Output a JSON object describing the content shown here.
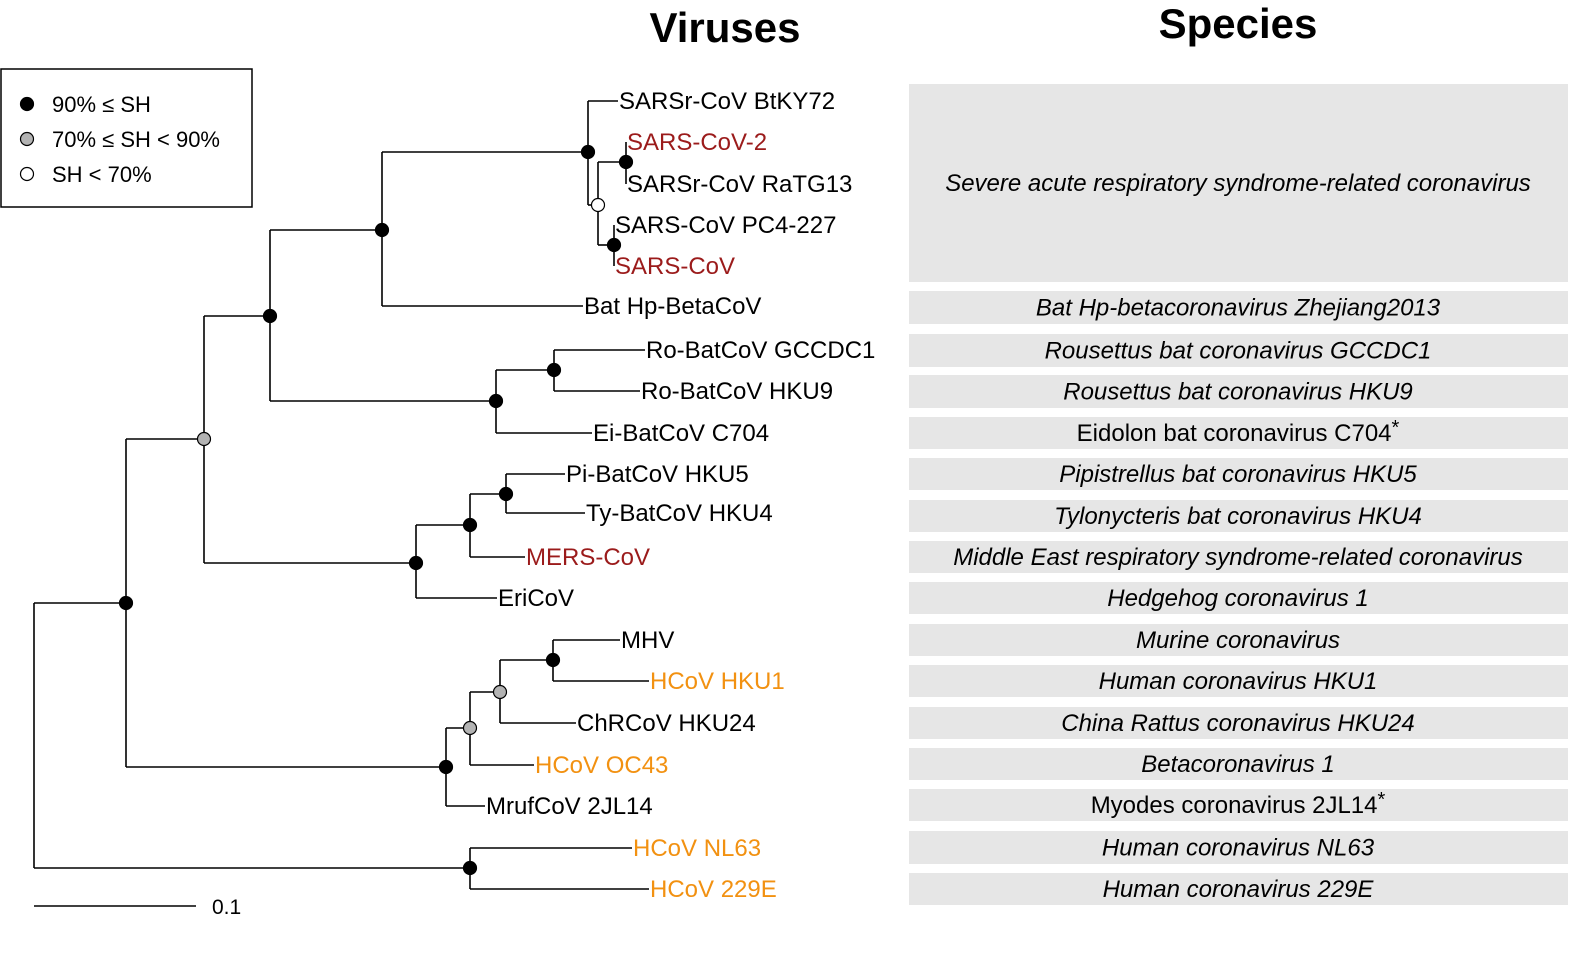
{
  "headers": {
    "viruses": "Viruses",
    "species": "Species"
  },
  "colors": {
    "red": "#9B1B1B",
    "orange": "#F29111",
    "black": "#000000",
    "band": "#E6E6E6",
    "node_gray": "#B3B3B3"
  },
  "legend": [
    {
      "symbol": "filled-black-circle",
      "label": "90% ≤ SH"
    },
    {
      "symbol": "filled-gray-circle",
      "label": "70% ≤ SH < 90%"
    },
    {
      "symbol": "open-circle",
      "label": "SH < 70%"
    }
  ],
  "scale_bar": {
    "label": "0.1"
  },
  "leaves": [
    {
      "id": "btky72",
      "label": "SARSr-CoV BtKY72",
      "color": "black"
    },
    {
      "id": "sars2",
      "label": "SARS-CoV-2",
      "color": "red"
    },
    {
      "id": "ratg13",
      "label": "SARSr-CoV RaTG13",
      "color": "black"
    },
    {
      "id": "pc4",
      "label": "SARS-CoV PC4-227",
      "color": "black"
    },
    {
      "id": "sars",
      "label": "SARS-CoV",
      "color": "red"
    },
    {
      "id": "bathp",
      "label": "Bat Hp-BetaCoV",
      "color": "black"
    },
    {
      "id": "gccdc1",
      "label": "Ro-BatCoV GCCDC1",
      "color": "black"
    },
    {
      "id": "hku9",
      "label": "Ro-BatCoV HKU9",
      "color": "black"
    },
    {
      "id": "c704",
      "label": "Ei-BatCoV C704",
      "color": "black"
    },
    {
      "id": "hku5",
      "label": "Pi-BatCoV HKU5",
      "color": "black"
    },
    {
      "id": "hku4",
      "label": "Ty-BatCoV HKU4",
      "color": "black"
    },
    {
      "id": "mers",
      "label": "MERS-CoV",
      "color": "red"
    },
    {
      "id": "ericov",
      "label": "EriCoV",
      "color": "black"
    },
    {
      "id": "mhv",
      "label": "MHV",
      "color": "black"
    },
    {
      "id": "hku1",
      "label": "HCoV HKU1",
      "color": "orange"
    },
    {
      "id": "hku24",
      "label": "ChRCoV HKU24",
      "color": "black"
    },
    {
      "id": "oc43",
      "label": "HCoV OC43",
      "color": "orange"
    },
    {
      "id": "mruf",
      "label": "MrufCoV 2JL14",
      "color": "black"
    },
    {
      "id": "nl63",
      "label": "HCoV NL63",
      "color": "orange"
    },
    {
      "id": "e229",
      "label": "HCoV 229E",
      "color": "orange"
    }
  ],
  "species": [
    {
      "label": "Severe acute respiratory syndrome-related coronavirus",
      "italic": true,
      "asterisk": ""
    },
    {
      "label": "Bat Hp-betacoronavirus Zhejiang2013",
      "italic": true,
      "asterisk": ""
    },
    {
      "label": "Rousettus bat coronavirus GCCDC1",
      "italic": true,
      "asterisk": ""
    },
    {
      "label": "Rousettus bat coronavirus HKU9",
      "italic": true,
      "asterisk": ""
    },
    {
      "label": "Eidolon bat coronavirus C704",
      "italic": false,
      "asterisk": "*"
    },
    {
      "label": "Pipistrellus bat coronavirus HKU5",
      "italic": true,
      "asterisk": ""
    },
    {
      "label": "Tylonycteris bat coronavirus HKU4",
      "italic": true,
      "asterisk": ""
    },
    {
      "label": "Middle East respiratory syndrome-related coronavirus",
      "italic": true,
      "asterisk": ""
    },
    {
      "label": "Hedgehog coronavirus 1",
      "italic": true,
      "asterisk": ""
    },
    {
      "label": "Murine coronavirus",
      "italic": true,
      "asterisk": ""
    },
    {
      "label": "Human coronavirus HKU1",
      "italic": true,
      "asterisk": ""
    },
    {
      "label": "China Rattus coronavirus HKU24",
      "italic": true,
      "asterisk": ""
    },
    {
      "label": "Betacoronavirus 1",
      "italic": true,
      "asterisk": ""
    },
    {
      "label": "Myodes coronavirus 2JL14",
      "italic": false,
      "asterisk": "*"
    },
    {
      "label": "Human coronavirus NL63",
      "italic": true,
      "asterisk": ""
    },
    {
      "label": "Human coronavirus 229E",
      "italic": true,
      "asterisk": ""
    }
  ],
  "node_support": {
    "sars_clade": "filled-black-circle",
    "sars2_ratg13": "filled-black-circle",
    "sars2_pc4_group": "open-circle",
    "pc4_sars": "filled-black-circle",
    "sarbeco": "filled-black-circle",
    "sarbeco_nobeco": "filled-black-circle",
    "gccdc1_hku9": "filled-black-circle",
    "nobeco": "filled-black-circle",
    "hku5_hku4": "filled-black-circle",
    "merbeco_core": "filled-black-circle",
    "merbeco": "filled-black-circle",
    "upper_betacov": "filled-gray-circle",
    "mhv_hku1": "filled-black-circle",
    "mhv_hku24": "filled-gray-circle",
    "embeco_core": "filled-gray-circle",
    "embeco": "filled-black-circle",
    "betacov": "filled-black-circle",
    "alphacov": "filled-black-circle"
  }
}
